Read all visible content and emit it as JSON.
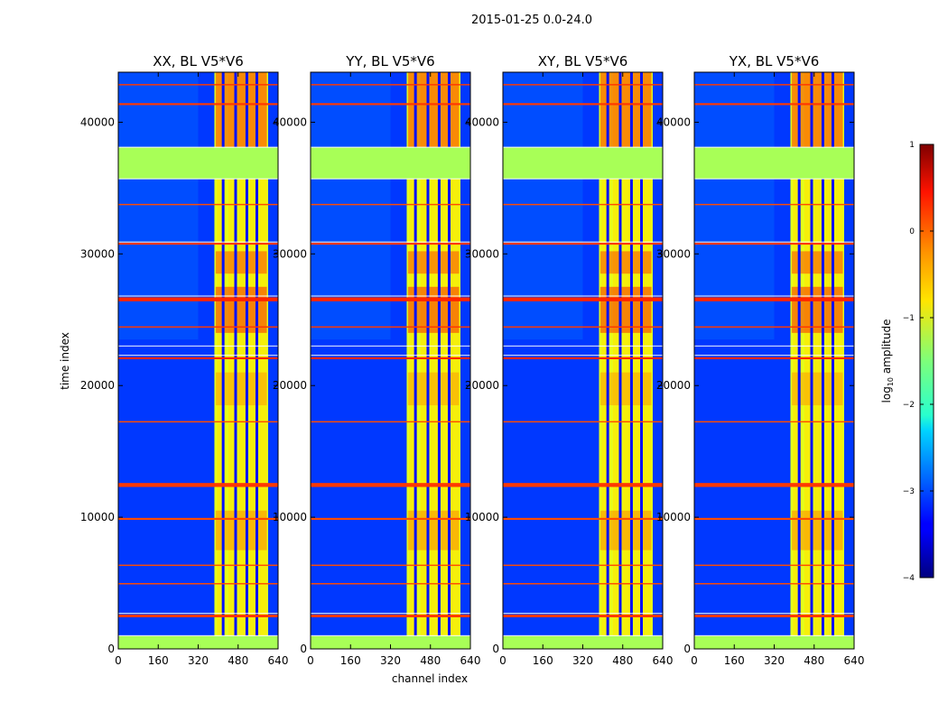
{
  "chart_data": {
    "type": "heatmap",
    "suptitle": "2015-01-25 0.0-24.0",
    "xlabel": "channel index",
    "ylabel": "time index",
    "xlim": [
      0,
      640
    ],
    "ylim": [
      0,
      43800
    ],
    "xticks": [
      "0",
      "160",
      "320",
      "480",
      "640"
    ],
    "yticks": [
      "0",
      "10000",
      "20000",
      "30000",
      "40000"
    ],
    "panels": [
      {
        "title": "XX, BL V5*V6"
      },
      {
        "title": "YY, BL V5*V6"
      },
      {
        "title": "XY, BL V5*V6"
      },
      {
        "title": "YX, BL V5*V6"
      }
    ],
    "colorbar": {
      "label": "log",
      "label_sub": "10",
      "label_tail": " amplitude",
      "range": [
        -4,
        1
      ],
      "ticks": [
        "1",
        "0",
        "−1",
        "−2",
        "−3",
        "−4"
      ],
      "colormap": "jet"
    },
    "flagged_rows": [
      {
        "t0": 0,
        "t1": 1000,
        "value": -1.3
      },
      {
        "t0": 35700,
        "t1": 38100,
        "value": -1.3
      },
      {
        "t0": 12300,
        "t1": 12600,
        "value": 0.1
      },
      {
        "t0": 26400,
        "t1": 26700,
        "value": 0.2
      },
      {
        "t0": 30700,
        "t1": 30850,
        "value": 0.1
      },
      {
        "t0": 22000,
        "t1": 22150,
        "value": 0.2
      },
      {
        "t0": 2400,
        "t1": 2600,
        "value": 0.1
      },
      {
        "t0": 17200,
        "t1": 17300,
        "value": 0.0
      },
      {
        "t0": 9800,
        "t1": 9950,
        "value": 0.0
      },
      {
        "t0": 6300,
        "t1": 6400,
        "value": 0.0
      },
      {
        "t0": 4900,
        "t1": 5000,
        "value": 0.0
      },
      {
        "t0": 24400,
        "t1": 24500,
        "value": 0.1
      },
      {
        "t0": 41300,
        "t1": 41450,
        "value": 0.1
      },
      {
        "t0": 42800,
        "t1": 42900,
        "value": 0.1
      },
      {
        "t0": 33700,
        "t1": 33800,
        "value": 0.0
      }
    ],
    "channel_band": {
      "c0": 385,
      "c1": 600,
      "value": -1.0
    },
    "channel_gaps": [
      420,
      470,
      515,
      555
    ],
    "background_value": -3.1
  }
}
